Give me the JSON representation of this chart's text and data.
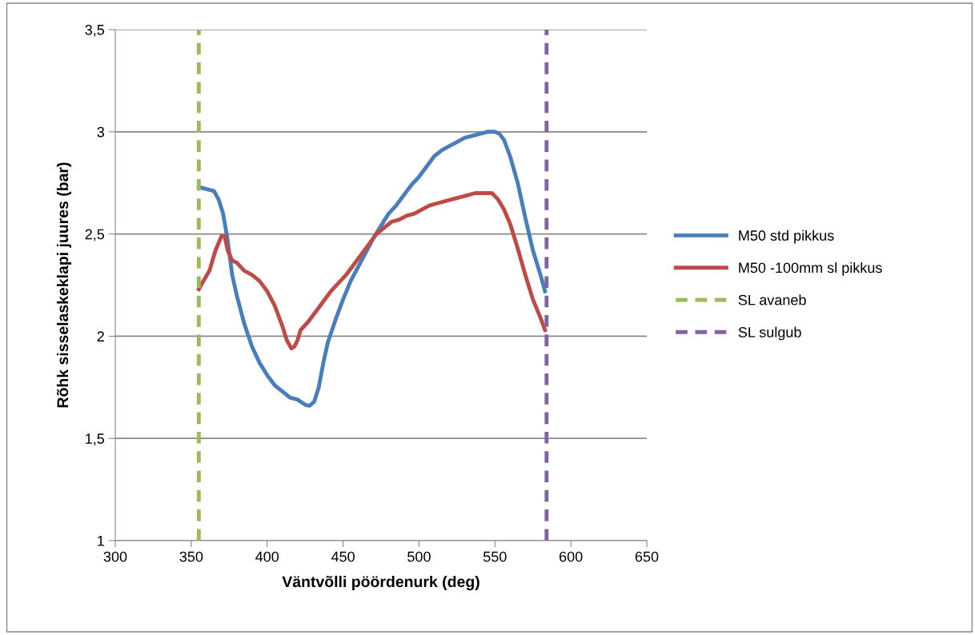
{
  "chart_data": {
    "type": "line",
    "xlabel": "Väntvõlli pöördenurk (deg)",
    "ylabel": "Rõhk sisselaskeklapi juures (bar)",
    "xlim": [
      300,
      650
    ],
    "xticks": [
      300,
      350,
      400,
      450,
      500,
      550,
      600,
      650
    ],
    "ylim": [
      1,
      3.5
    ],
    "yticks": [
      1,
      {
        "value": 1.5,
        "label": "1,5"
      },
      2,
      {
        "value": 2.5,
        "label": "2,5"
      },
      3,
      {
        "value": 3.5,
        "label": "3,5"
      }
    ],
    "grid": "y",
    "legend": "right",
    "marker": "none",
    "series": [
      {
        "name": "M50 std pikkus",
        "color": "#4a7ebb",
        "line_style": "solid",
        "x": [
          355,
          360,
          365,
          368,
          371,
          374,
          377,
          380,
          385,
          390,
          395,
          400,
          405,
          410,
          415,
          420,
          425,
          428,
          431,
          434,
          437,
          440,
          445,
          450,
          455,
          460,
          465,
          470,
          475,
          480,
          485,
          490,
          495,
          500,
          505,
          510,
          515,
          520,
          525,
          530,
          535,
          540,
          545,
          550,
          553,
          556,
          560,
          565,
          570,
          575,
          580,
          583
        ],
        "values": [
          2.73,
          2.72,
          2.71,
          2.67,
          2.6,
          2.47,
          2.3,
          2.2,
          2.06,
          1.95,
          1.87,
          1.81,
          1.76,
          1.73,
          1.7,
          1.69,
          1.665,
          1.66,
          1.68,
          1.75,
          1.87,
          1.97,
          2.08,
          2.18,
          2.27,
          2.34,
          2.41,
          2.48,
          2.54,
          2.6,
          2.64,
          2.69,
          2.74,
          2.78,
          2.83,
          2.88,
          2.91,
          2.93,
          2.95,
          2.97,
          2.98,
          2.99,
          3.0,
          3.0,
          2.99,
          2.96,
          2.88,
          2.75,
          2.58,
          2.42,
          2.3,
          2.22
        ]
      },
      {
        "name": "M50 -100mm sl pikkus",
        "color": "#be4b48",
        "line_style": "solid",
        "x": [
          355,
          358,
          362,
          366,
          370,
          372,
          374,
          377,
          380,
          385,
          390,
          395,
          400,
          405,
          410,
          413,
          416,
          418,
          420,
          422,
          427,
          432,
          437,
          442,
          447,
          452,
          457,
          462,
          467,
          472,
          477,
          482,
          487,
          492,
          497,
          502,
          507,
          512,
          517,
          522,
          527,
          532,
          537,
          542,
          548,
          552,
          556,
          560,
          565,
          570,
          575,
          580,
          583
        ],
        "values": [
          2.23,
          2.27,
          2.32,
          2.42,
          2.49,
          2.49,
          2.42,
          2.37,
          2.36,
          2.32,
          2.3,
          2.27,
          2.22,
          2.15,
          2.05,
          1.98,
          1.94,
          1.95,
          1.98,
          2.03,
          2.07,
          2.12,
          2.17,
          2.22,
          2.26,
          2.3,
          2.35,
          2.4,
          2.45,
          2.5,
          2.53,
          2.56,
          2.57,
          2.59,
          2.6,
          2.62,
          2.64,
          2.65,
          2.66,
          2.67,
          2.68,
          2.69,
          2.7,
          2.7,
          2.7,
          2.67,
          2.62,
          2.55,
          2.43,
          2.3,
          2.18,
          2.09,
          2.03
        ]
      },
      {
        "name": "SL avaneb",
        "color": "#9bbb59",
        "line_style": "dashed",
        "x": [
          355,
          355
        ],
        "values": [
          1,
          3.5
        ]
      },
      {
        "name": "SL sulgub",
        "color": "#8064a2",
        "line_style": "dashed",
        "x": [
          584,
          584
        ],
        "values": [
          1,
          3.5
        ]
      }
    ]
  }
}
